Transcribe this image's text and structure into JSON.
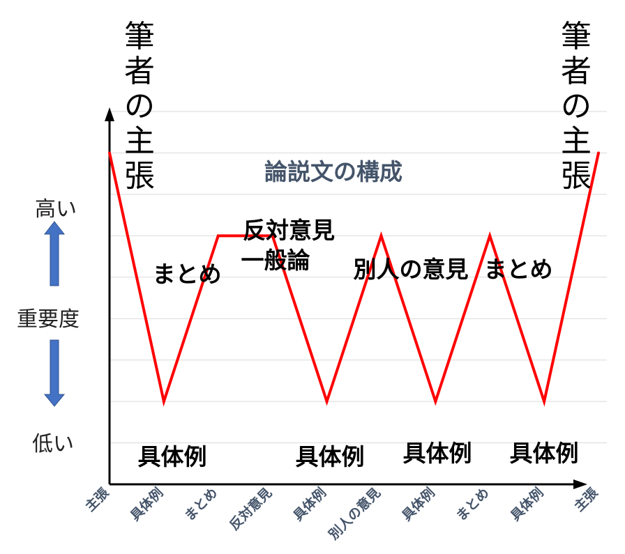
{
  "side_titles": {
    "left": [
      "筆",
      "者",
      "の",
      "主",
      "張"
    ],
    "right": [
      "筆",
      "者",
      "の",
      "主",
      "張"
    ]
  },
  "importance_axis": {
    "high": "高い",
    "label": "重要度",
    "low": "低い",
    "arrow_color": "#4472c4"
  },
  "chart_data": {
    "type": "line",
    "title": "論説文の構成",
    "categories": [
      "主張",
      "具体例",
      "まとめ",
      "反対意見",
      "具体例",
      "別人の意見",
      "具体例",
      "まとめ",
      "具体例",
      "主張"
    ],
    "series": [
      {
        "values": [
          3,
          0,
          2,
          2,
          0,
          2,
          0,
          2,
          0,
          3
        ],
        "color": "#ff0000"
      }
    ],
    "ylim": [
      -1,
      3.5
    ],
    "grid": true,
    "axis_color": "#000000",
    "grid_color": "#d9d9d9",
    "tick_color": "#44546a",
    "title_color": "#44546a",
    "annotations": [
      {
        "text": "まとめ",
        "target": 2
      },
      {
        "text": "反対意見",
        "target": 3
      },
      {
        "text": "一般論",
        "target": 3
      },
      {
        "text": "別人の意見",
        "target": 5
      },
      {
        "text": "まとめ",
        "target": 7
      },
      {
        "text": "具体例",
        "target": 1
      },
      {
        "text": "具体例",
        "target": 4
      },
      {
        "text": "具体例",
        "target": 6
      },
      {
        "text": "具体例",
        "target": 8
      }
    ]
  }
}
